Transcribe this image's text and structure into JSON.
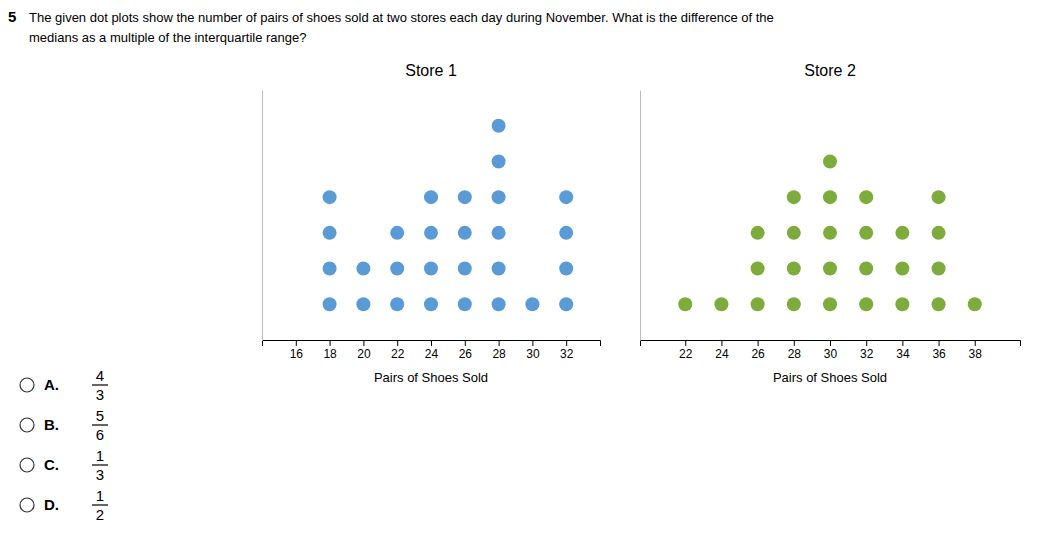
{
  "chart_data": [
    {
      "type": "dot_plot",
      "title": "Store 1",
      "xlabel": "Pairs of Shoes Sold",
      "x": [
        18,
        20,
        22,
        24,
        26,
        28,
        30,
        32
      ],
      "values": [
        4,
        2,
        3,
        4,
        4,
        6,
        1,
        4
      ],
      "color": "#5b9bd5",
      "xlim": [
        14.0,
        34.0
      ],
      "xticks": [
        16,
        18,
        20,
        22,
        24,
        26,
        28,
        30,
        32
      ],
      "ylim": [
        0,
        7
      ],
      "yticks": [],
      "tick_labels": "x",
      "annotations": [
        [
          "5",
          "The given dot plots show the number of pairs of shoes sold at two stores each day during November. What is the difference of the",
          "medians as a multiple of the interquartile range?"
        ],
        [
          "A.",
          "4",
          "3"
        ],
        [
          "B.",
          "5",
          "6"
        ],
        [
          "C.",
          "1",
          "3"
        ],
        [
          "D.",
          "1",
          "2"
        ]
      ]
    },
    {
      "type": "dot_plot",
      "title": "Store 2",
      "xlabel": "Pairs of Shoes Sold",
      "x": [
        22,
        24,
        26,
        28,
        30,
        32,
        34,
        36,
        38
      ],
      "values": [
        1,
        1,
        3,
        4,
        5,
        4,
        3,
        4,
        1
      ],
      "color": "#7dab3c",
      "xlim": [
        19.5,
        40.5
      ],
      "xticks": [
        22,
        24,
        26,
        28,
        30,
        32,
        34,
        36,
        38
      ],
      "ylim": [
        0,
        7
      ],
      "yticks": [],
      "tick_labels": "x"
    }
  ]
}
